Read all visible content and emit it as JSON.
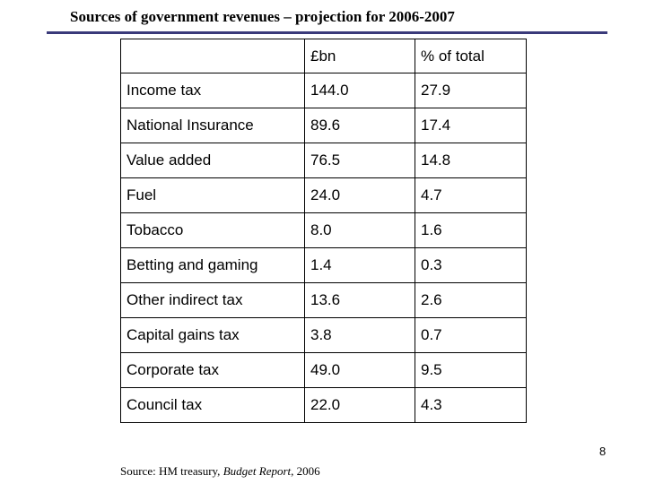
{
  "slide": {
    "title": "Sources of government revenues – projection for 2006-2007",
    "page_number": "8"
  },
  "table": {
    "headers": [
      "",
      "£bn",
      "% of total"
    ],
    "rows": [
      {
        "source": "Income tax",
        "bn": "144.0",
        "pct": "27.9"
      },
      {
        "source": "National Insurance",
        "bn": "89.6",
        "pct": "17.4"
      },
      {
        "source": "Value added",
        "bn": "76.5",
        "pct": "14.8"
      },
      {
        "source": "Fuel",
        "bn": "24.0",
        "pct": "4.7"
      },
      {
        "source": "Tobacco",
        "bn": "8.0",
        "pct": "1.6"
      },
      {
        "source": "Betting and gaming",
        "bn": "1.4",
        "pct": "0.3"
      },
      {
        "source": "Other indirect tax",
        "bn": "13.6",
        "pct": "2.6"
      },
      {
        "source": "Capital gains tax",
        "bn": "3.8",
        "pct": "0.7"
      },
      {
        "source": "Corporate tax",
        "bn": "49.0",
        "pct": "9.5"
      },
      {
        "source": "Council tax",
        "bn": "22.0",
        "pct": "4.3"
      }
    ]
  },
  "source_note": {
    "prefix": "Source: HM treasury, ",
    "publication": "Budget Report",
    "suffix": ", 2006"
  },
  "colors": {
    "title_rule": "#3a3a7a"
  }
}
